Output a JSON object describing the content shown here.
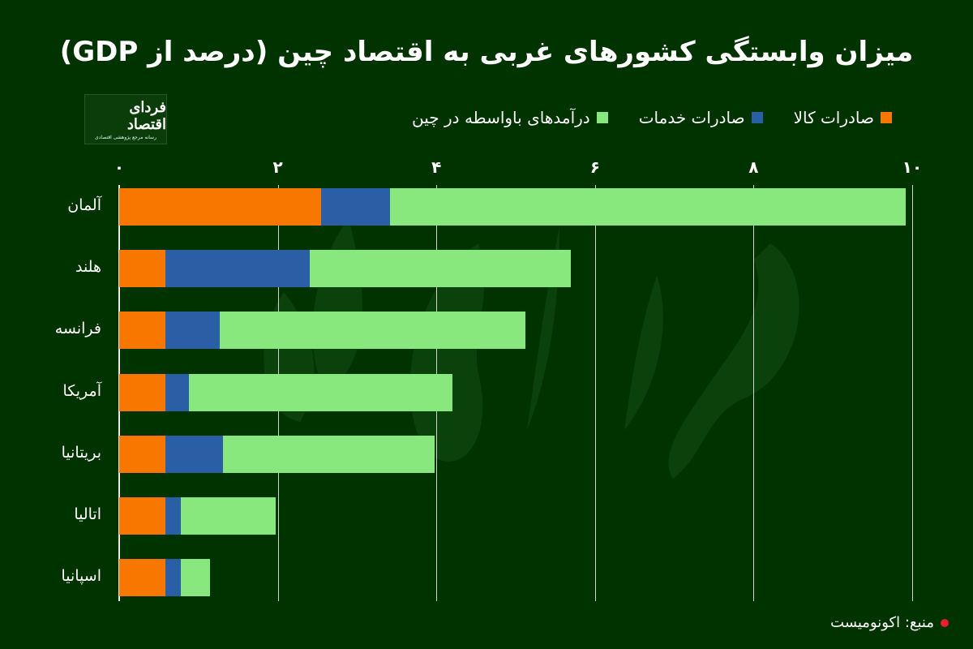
{
  "title": "میزان وابستگی کشورهای غربی به اقتصاد چین (درصد از GDP)",
  "logo": {
    "name": "فردای اقتصاد",
    "tagline": "رسانه مرجع پژوهشی اقتصادی"
  },
  "legend": [
    {
      "label": "صادرات کالا",
      "color": "#f77700"
    },
    {
      "label": "صادرات خدمات",
      "color": "#2a5ea5"
    },
    {
      "label": "درآمدهای باواسطه در چین",
      "color": "#88e87e"
    }
  ],
  "axis": {
    "ticks": [
      {
        "value": 0,
        "label": "۰"
      },
      {
        "value": 2,
        "label": "۲"
      },
      {
        "value": 4,
        "label": "۴"
      },
      {
        "value": 6,
        "label": "۶"
      },
      {
        "value": 8,
        "label": "۸"
      },
      {
        "value": 10,
        "label": "۱۰"
      }
    ]
  },
  "source": "منبع: اکونومیست",
  "colors": {
    "background": "#003300",
    "goods": "#f77700",
    "services": "#2a5ea5",
    "income": "#88e87e",
    "source_dot": "#e8202a"
  },
  "chart_data": {
    "type": "bar",
    "orientation": "horizontal",
    "stacked": true,
    "title": "میزان وابستگی کشورهای غربی به اقتصاد چین (درصد از GDP)",
    "xlabel": "",
    "ylabel": "",
    "xlim": [
      0,
      10
    ],
    "grid": true,
    "legend_position": "top",
    "categories": [
      "آلمان",
      "هلند",
      "فرانسه",
      "آمریکا",
      "بریتانیا",
      "اتالیا",
      "اسپانیا"
    ],
    "series": [
      {
        "name": "صادرات کالا",
        "color": "#f77700",
        "values": [
          2.55,
          0.58,
          0.58,
          0.58,
          0.58,
          0.58,
          0.58
        ]
      },
      {
        "name": "صادرات خدمات",
        "color": "#2a5ea5",
        "values": [
          0.87,
          1.82,
          0.69,
          0.3,
          0.73,
          0.2,
          0.2
        ]
      },
      {
        "name": "درآمدهای باواسطه در چین",
        "color": "#88e87e",
        "values": [
          6.5,
          3.3,
          3.85,
          3.32,
          2.67,
          1.19,
          0.37
        ]
      }
    ],
    "totals": [
      9.92,
      5.7,
      5.12,
      4.2,
      3.98,
      1.97,
      1.15
    ]
  }
}
